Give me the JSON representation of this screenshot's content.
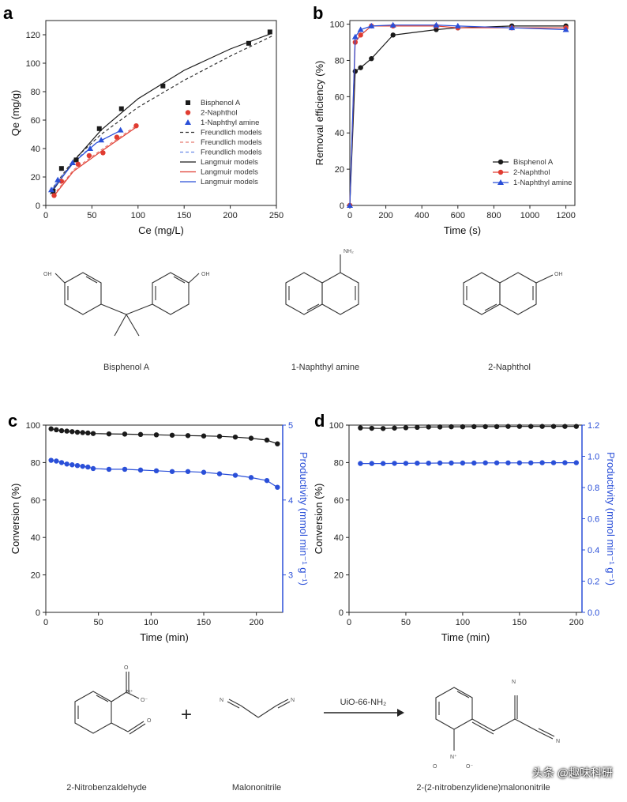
{
  "panels": {
    "a": "a",
    "b": "b",
    "c": "c",
    "d": "d"
  },
  "chart_data": [
    {
      "id": "a",
      "type": "scatter",
      "xlabel": "Ce (mg/L)",
      "ylabel": "Qe (mg/g)",
      "xlim": [
        0,
        250
      ],
      "ylim": [
        0,
        130
      ],
      "xticks": [
        "0",
        "50",
        "100",
        "150",
        "200",
        "250"
      ],
      "yticks": [
        "0",
        "20",
        "40",
        "60",
        "80",
        "100",
        "120"
      ],
      "legend_position": "right",
      "series": [
        {
          "name": "Bisphenol A",
          "color": "#1a1a1a",
          "marker": "square",
          "x": [
            8,
            17,
            33,
            58,
            82,
            127,
            220,
            243
          ],
          "y": [
            10,
            26,
            32,
            54,
            68,
            84,
            114,
            122
          ]
        },
        {
          "name": "2-Naphthol",
          "color": "#e03c31",
          "marker": "circle",
          "x": [
            9,
            17,
            35,
            47,
            62,
            77,
            98
          ],
          "y": [
            7,
            17,
            29,
            35,
            37,
            48,
            56
          ]
        },
        {
          "name": "1-Naphthyl amine",
          "color": "#2a4fd8",
          "marker": "triangle",
          "x": [
            6,
            13,
            29,
            48,
            60,
            81
          ],
          "y": [
            11,
            18,
            30,
            40,
            46,
            53
          ]
        }
      ],
      "fits": [
        {
          "name": "Freundlich models",
          "color": "#333333",
          "dash": true,
          "x": [
            5,
            30,
            60,
            100,
            150,
            200,
            245
          ],
          "y": [
            10,
            32,
            50,
            69,
            88,
            105,
            119
          ]
        },
        {
          "name": "Freundlich models",
          "color": "#e87a70",
          "dash": true,
          "x": [
            8,
            30,
            60,
            98
          ],
          "y": [
            7,
            25,
            39,
            56
          ]
        },
        {
          "name": "Freundlich models",
          "color": "#6a8ae8",
          "dash": true,
          "x": [
            6,
            30,
            55,
            82
          ],
          "y": [
            11,
            31,
            44,
            53
          ]
        },
        {
          "name": "Langmuir models",
          "color": "#1a1a1a",
          "dash": false,
          "x": [
            5,
            30,
            60,
            100,
            150,
            200,
            245
          ],
          "y": [
            8,
            31,
            53,
            75,
            95,
            110,
            121
          ]
        },
        {
          "name": "Langmuir models",
          "color": "#e03c31",
          "dash": false,
          "x": [
            8,
            30,
            60,
            98
          ],
          "y": [
            6,
            24,
            38,
            55
          ]
        },
        {
          "name": "Langmuir models",
          "color": "#2a4fd8",
          "dash": false,
          "x": [
            6,
            30,
            55,
            82
          ],
          "y": [
            10,
            30,
            44,
            53
          ]
        }
      ]
    },
    {
      "id": "b",
      "type": "line",
      "xlabel": "Time (s)",
      "ylabel": "Removal efficiency (%)",
      "xlim": [
        0,
        1250
      ],
      "ylim": [
        0,
        102
      ],
      "xticks": [
        "0",
        "200",
        "400",
        "600",
        "800",
        "1000",
        "1200"
      ],
      "yticks": [
        "0",
        "20",
        "40",
        "60",
        "80",
        "100"
      ],
      "legend_position": "bottom-right",
      "series": [
        {
          "name": "Bisphenol A",
          "color": "#1a1a1a",
          "marker": "circle",
          "x": [
            0,
            30,
            60,
            120,
            240,
            480,
            600,
            900,
            1200
          ],
          "y": [
            0,
            74,
            76,
            81,
            94,
            97,
            98,
            99,
            99
          ]
        },
        {
          "name": "2-Naphthol",
          "color": "#e03c31",
          "marker": "circle",
          "x": [
            0,
            30,
            60,
            120,
            240,
            480,
            600,
            900,
            1200
          ],
          "y": [
            0,
            90,
            94,
            99,
            99,
            99,
            98,
            98,
            98
          ]
        },
        {
          "name": "1-Naphthyl amine",
          "color": "#2a4fd8",
          "marker": "triangle",
          "x": [
            0,
            30,
            60,
            120,
            240,
            480,
            600,
            900,
            1200
          ],
          "y": [
            0,
            93,
            97,
            99,
            99.5,
            99.5,
            99,
            98,
            97
          ]
        }
      ]
    },
    {
      "id": "c",
      "type": "line",
      "xlabel": "Time (min)",
      "ylabel": "Conversion (%)",
      "y2label": "Productivity (mmol min⁻¹ g⁻¹)",
      "xlim": [
        0,
        225
      ],
      "ylim": [
        0,
        100
      ],
      "y2lim": [
        2.5,
        5
      ],
      "xticks": [
        "0",
        "50",
        "100",
        "150",
        "200"
      ],
      "yticks": [
        "0",
        "20",
        "40",
        "60",
        "80",
        "100"
      ],
      "y2ticks": [
        "3",
        "4",
        "5"
      ],
      "series": [
        {
          "name": "Conversion",
          "axis": "left",
          "color": "#1a1a1a",
          "x": [
            5,
            10,
            15,
            20,
            25,
            30,
            35,
            40,
            45,
            60,
            75,
            90,
            105,
            120,
            135,
            150,
            165,
            180,
            195,
            210,
            220
          ],
          "y": [
            98,
            97.5,
            97,
            96.8,
            96.5,
            96.2,
            96,
            95.8,
            95.5,
            95.3,
            95.2,
            95,
            94.8,
            94.6,
            94.4,
            94.2,
            94,
            93.6,
            93,
            92,
            90
          ]
        },
        {
          "name": "Productivity",
          "axis": "right",
          "color": "#2a4fd8",
          "x": [
            5,
            10,
            15,
            20,
            25,
            30,
            35,
            40,
            45,
            60,
            75,
            90,
            105,
            120,
            135,
            150,
            165,
            180,
            195,
            210,
            220
          ],
          "y": [
            4.53,
            4.52,
            4.5,
            4.48,
            4.47,
            4.46,
            4.45,
            4.44,
            4.42,
            4.41,
            4.41,
            4.4,
            4.39,
            4.38,
            4.38,
            4.37,
            4.35,
            4.33,
            4.3,
            4.26,
            4.17
          ]
        }
      ]
    },
    {
      "id": "d",
      "type": "line",
      "xlabel": "Time (min)",
      "ylabel": "Conversion (%)",
      "y2label": "Productivity (mmol min⁻¹ g⁻¹)",
      "xlim": [
        0,
        205
      ],
      "ylim": [
        0,
        100
      ],
      "y2lim": [
        0,
        1.2
      ],
      "xticks": [
        "0",
        "50",
        "100",
        "150",
        "200"
      ],
      "yticks": [
        "0",
        "20",
        "40",
        "60",
        "80",
        "100"
      ],
      "y2ticks": [
        "0.0",
        "0.2",
        "0.4",
        "0.6",
        "0.8",
        "1.0",
        "1.2"
      ],
      "series": [
        {
          "name": "Conversion",
          "axis": "left",
          "color": "#1a1a1a",
          "x": [
            10,
            20,
            30,
            40,
            50,
            60,
            70,
            80,
            90,
            100,
            110,
            120,
            130,
            140,
            150,
            160,
            170,
            180,
            190,
            200
          ],
          "y": [
            98.5,
            98.3,
            98.2,
            98.4,
            98.6,
            98.8,
            99,
            99,
            99.1,
            99.1,
            99.2,
            99.2,
            99.2,
            99.3,
            99.3,
            99.3,
            99.3,
            99.3,
            99.3,
            99.3
          ]
        },
        {
          "name": "Productivity",
          "axis": "right",
          "color": "#2a4fd8",
          "x": [
            10,
            20,
            30,
            40,
            50,
            60,
            70,
            80,
            90,
            100,
            110,
            120,
            130,
            140,
            150,
            160,
            170,
            180,
            190,
            200
          ],
          "y": [
            0.954,
            0.954,
            0.954,
            0.955,
            0.955,
            0.956,
            0.956,
            0.957,
            0.957,
            0.957,
            0.957,
            0.958,
            0.958,
            0.958,
            0.958,
            0.958,
            0.959,
            0.959,
            0.959,
            0.959
          ]
        }
      ]
    }
  ],
  "molecules": {
    "bisphenol_a": "Bisphenol A",
    "naphthyl_amine": "1-Naphthyl amine",
    "naphthol": "2-Naphthol",
    "nitrobenzaldehyde": "2-Nitrobenzaldehyde",
    "malononitrile": "Malononitrile",
    "product": "2-(2-nitrobenzylidene)malononitrile",
    "catalyst": "UiO-66-NH₂",
    "plus": "+",
    "oh": "OH",
    "nh2": "NH₂",
    "n": "N",
    "o": "O",
    "no2_n": "N⁺",
    "o_minus": "O⁻"
  },
  "watermark": "头条 @趣味科研"
}
